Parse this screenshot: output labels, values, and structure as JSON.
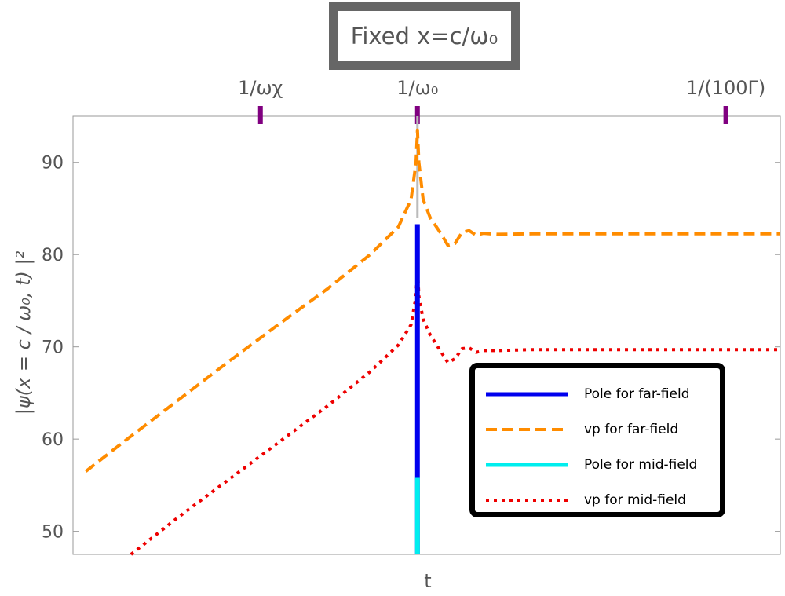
{
  "title": "Fixed x=c/ω₀",
  "chart_data": {
    "type": "line",
    "xlabel": "t",
    "ylabel": "|ψ(x = c / ω₀, t) |²",
    "xlim": [
      0,
      1
    ],
    "ylim": [
      47.5,
      95
    ],
    "yticks": [
      50,
      60,
      70,
      80,
      90
    ],
    "top_axis_ticks": [
      {
        "label": "1/ωχ",
        "x": 0.265
      },
      {
        "label": "1/ω₀",
        "x": 0.487
      },
      {
        "label": "1/(100Γ)",
        "x": 0.923
      }
    ],
    "series": [
      {
        "name": "Pole for far-field",
        "color": "#0000ee",
        "style": "solid",
        "points": [
          [
            0.487,
            47.5
          ],
          [
            0.487,
            83.3
          ]
        ]
      },
      {
        "name": "vp for far-field",
        "color": "#ff8c00",
        "style": "dashed",
        "points": [
          [
            0.018,
            56.5
          ],
          [
            0.08,
            60.2
          ],
          [
            0.15,
            64.3
          ],
          [
            0.22,
            68.4
          ],
          [
            0.29,
            72.4
          ],
          [
            0.36,
            76.3
          ],
          [
            0.42,
            80.0
          ],
          [
            0.46,
            83.0
          ],
          [
            0.478,
            86.0
          ],
          [
            0.485,
            90.0
          ],
          [
            0.487,
            93.5
          ],
          [
            0.489,
            90.0
          ],
          [
            0.495,
            86.0
          ],
          [
            0.505,
            84.0
          ],
          [
            0.52,
            82.3
          ],
          [
            0.53,
            81.0
          ],
          [
            0.54,
            81.2
          ],
          [
            0.55,
            82.4
          ],
          [
            0.56,
            82.6
          ],
          [
            0.57,
            82.1
          ],
          [
            0.58,
            82.3
          ],
          [
            0.6,
            82.2
          ],
          [
            0.65,
            82.25
          ],
          [
            1.0,
            82.25
          ]
        ]
      },
      {
        "name": "Pole for mid-field",
        "color": "#00eeee",
        "style": "solid",
        "points": [
          [
            0.487,
            47.5
          ],
          [
            0.487,
            55.8
          ]
        ]
      },
      {
        "name": "vp for mid-field",
        "color": "#ee0000",
        "style": "dotted",
        "points": [
          [
            0.082,
            47.5
          ],
          [
            0.15,
            51.6
          ],
          [
            0.22,
            55.6
          ],
          [
            0.29,
            59.6
          ],
          [
            0.36,
            63.6
          ],
          [
            0.42,
            67.3
          ],
          [
            0.46,
            70.2
          ],
          [
            0.478,
            72.4
          ],
          [
            0.485,
            75.5
          ],
          [
            0.487,
            78.5
          ],
          [
            0.489,
            75.5
          ],
          [
            0.495,
            73.0
          ],
          [
            0.505,
            71.3
          ],
          [
            0.52,
            69.5
          ],
          [
            0.53,
            68.3
          ],
          [
            0.54,
            68.7
          ],
          [
            0.55,
            69.8
          ],
          [
            0.56,
            69.9
          ],
          [
            0.57,
            69.4
          ],
          [
            0.58,
            69.6
          ],
          [
            0.6,
            69.6
          ],
          [
            0.65,
            69.7
          ],
          [
            1.0,
            69.7
          ]
        ]
      }
    ],
    "legend_position": "bottom-right",
    "grid": false
  }
}
